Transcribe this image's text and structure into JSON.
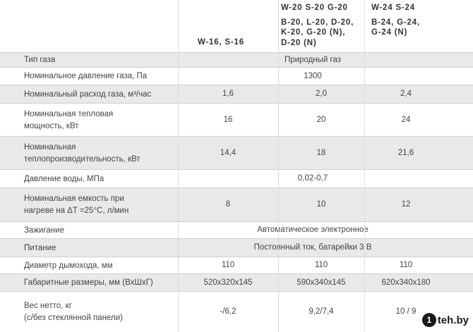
{
  "header": {
    "col1": [
      "W-16, S-16"
    ],
    "col2": [
      "W-20  S-20  G-20",
      "B-20, L-20, D-20,",
      "K-20, G-20 (N),",
      "D-20 (N)"
    ],
    "col3": [
      "W-24  S-24",
      "B-24, G-24,",
      "G-24 (N)"
    ]
  },
  "rows": [
    {
      "label": [
        "Тип газа"
      ],
      "span": "Природный газ"
    },
    {
      "label": [
        "Номинальное давление газа, Па"
      ],
      "span": "1300"
    },
    {
      "label": [
        "Номинальный расход газа, м³/час"
      ],
      "c1": "1,6",
      "c2": "2,0",
      "c3": "2,4"
    },
    {
      "label": [
        "Номинальная тепловая",
        "мощность, кВт"
      ],
      "c1": "16",
      "c2": "20",
      "c3": "24"
    },
    {
      "label": [
        "Номинальная",
        "теплопроизводительность, кВт"
      ],
      "c1": "14,4",
      "c2": "18",
      "c3": "21,6"
    },
    {
      "label": [
        "Давление воды, МПа"
      ],
      "span": "0,02-0,7"
    },
    {
      "label": [
        "Номинальная емкость при",
        "нагреве на ΔT =25°C, л/мин"
      ],
      "c1": "8",
      "c2": "10",
      "c3": "12"
    },
    {
      "label": [
        "Зажигание"
      ],
      "span": "Автоматическое электронное"
    },
    {
      "label": [
        "Питание"
      ],
      "span": "Постоянный ток, батарейки 3 В"
    },
    {
      "label": [
        "Диаметр дымохода, мм"
      ],
      "c1": "110",
      "c2": "110",
      "c3": "110"
    },
    {
      "label": [
        "Габаритные размеры, мм (ВхШхГ)"
      ],
      "c1": "520x320x145",
      "c2": "590x340x145",
      "c3": "620x340x180"
    },
    {
      "label": [
        "Вес нетто, кг",
        "(с/без стеклянной панели)"
      ],
      "c1": "-/6,2",
      "c2": "9,2/7,4",
      "c3": "10 / 9"
    }
  ],
  "watermark": {
    "badge": "1",
    "text": "teh.by"
  }
}
